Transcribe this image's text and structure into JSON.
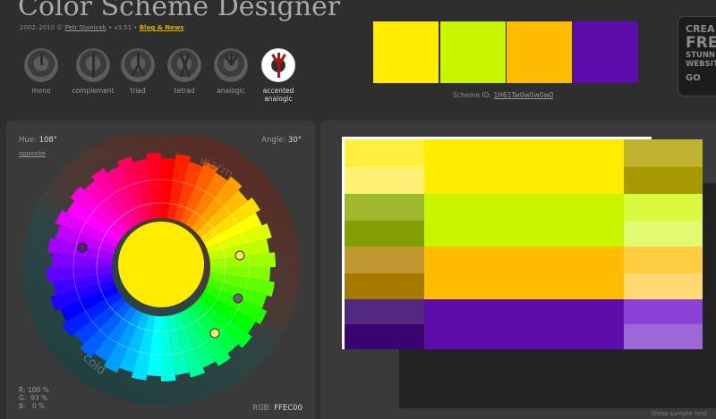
{
  "header": {
    "app_title": "Color Scheme Designer",
    "credits_years": "2002–2010 ©",
    "credits_author": "Petr Stanicek",
    "credits_version": "• v3.51 •",
    "credits_blog": "Blog & News"
  },
  "modes": [
    {
      "label": "mono",
      "active": false
    },
    {
      "label": "complement",
      "active": false
    },
    {
      "label": "triad",
      "active": false
    },
    {
      "label": "tetrad",
      "active": false
    },
    {
      "label": "analogic",
      "active": false
    },
    {
      "label": "accented analogic",
      "active": true
    }
  ],
  "scheme_swatches": [
    "#FFEC00",
    "#C7F600",
    "#FFBC00",
    "#5C0DAC"
  ],
  "scheme_id_label": "Scheme ID:",
  "scheme_id_value": "1H61Tw0w0w0w0",
  "ad": {
    "line1": "CREA",
    "line2": "FRE",
    "line3": "STUNN",
    "line4": "WEBSIT",
    "line5": "GO"
  },
  "wheel": {
    "hue_label": "Hue:",
    "hue_value": "108°",
    "opposite_link": "opposite",
    "angle_label": "Angle:",
    "angle_value": "30°",
    "warm_label": "warm",
    "cold_label": "cold",
    "rgb_pct": "R: 100 %\nG:  93 %\nB:   0 %",
    "rgb_label": "RGB:",
    "rgb_hex": "FFEC00",
    "center_color": "#FFEC00"
  },
  "palette": {
    "rows": [
      {
        "main": "#FFEC00",
        "shades": [
          "#FFF040",
          "#FFF173",
          "#BFB330",
          "#A69A00"
        ]
      },
      {
        "main": "#C7F600",
        "shades": [
          "#9FB92E",
          "#819F00",
          "#D8FA3F",
          "#E0FA71"
        ]
      },
      {
        "main": "#FFBC00",
        "shades": [
          "#BF9930",
          "#A67A00",
          "#FFCD40",
          "#FFDA73"
        ]
      },
      {
        "main": "#5C0DAC",
        "shades": [
          "#522981",
          "#3A0470",
          "#8C42D6",
          "#9D68D6"
        ]
      }
    ],
    "sample_text_link": "Show sample text"
  }
}
